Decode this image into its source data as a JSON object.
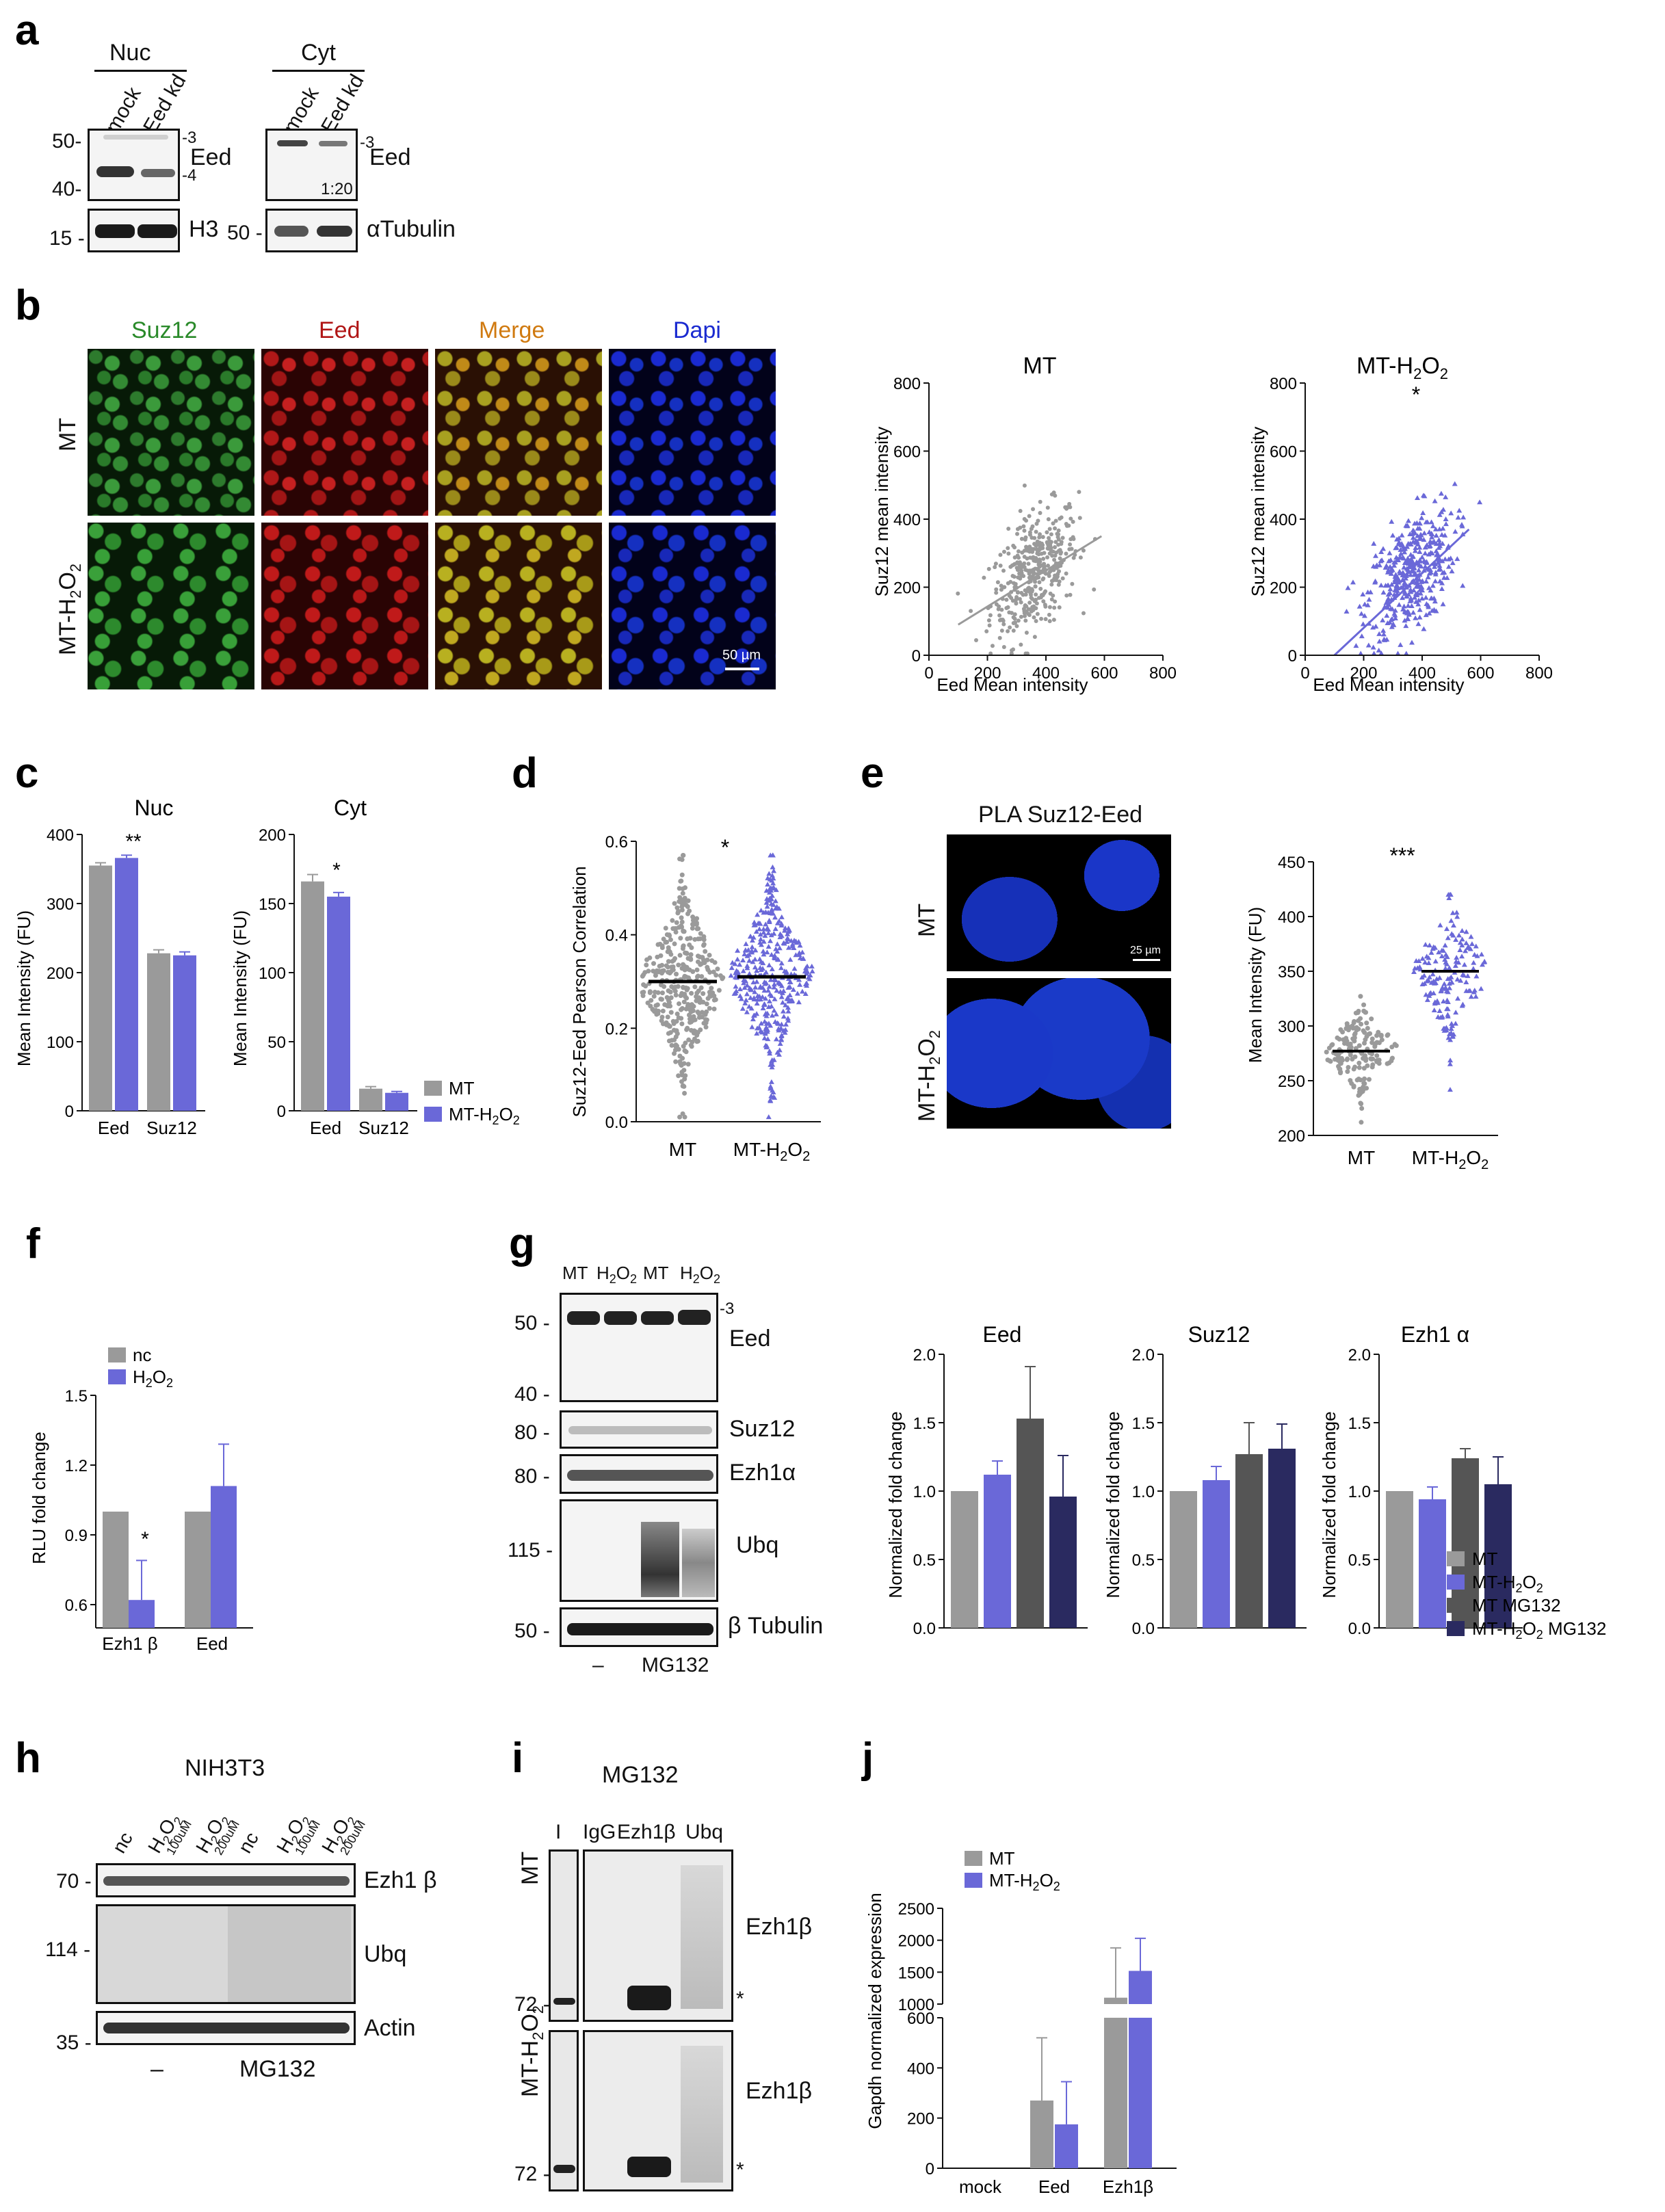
{
  "panel_labels": {
    "a": "a",
    "b": "b",
    "c": "c",
    "d": "d",
    "e": "e",
    "f": "f",
    "g": "g",
    "h": "h",
    "i": "i",
    "j": "j"
  },
  "a": {
    "nuc": "Nuc",
    "cyt": "Cyt",
    "lane_mock": "mock",
    "lane_eed_kd": "Eed kd",
    "eed": "Eed",
    "h3": "H3",
    "tubulin": "αTubulin",
    "mw_50": "50-",
    "mw_40": "40-",
    "mw_15": "15 -",
    "mw_50b": "50 -",
    "iso3": "-3",
    "iso4": "-4",
    "ratio": "1:20"
  },
  "b": {
    "cols": [
      "Suz12",
      "Eed",
      "Merge",
      "Dapi"
    ],
    "col_colors": [
      "#2a8a2a",
      "#b01515",
      "#d07a10",
      "#1a2ad0"
    ],
    "row_mt": "MT",
    "row_h2o2": "MT-H",
    "sub2": "2",
    "o": "O",
    "scale_bar": "50 µm",
    "scatter1_title": "MT",
    "scatter2_title_pre": "MT-H",
    "y_label": "Suz12 mean intensity",
    "x_label": "Eed Mean intensity",
    "star": "*",
    "y_ticks": [
      "800",
      "600",
      "400",
      "200",
      "0"
    ],
    "x_ticks": [
      "0",
      "200",
      "400",
      "600",
      "800"
    ]
  },
  "c": {
    "nuc": "Nuc",
    "cyt": "Cyt",
    "y_label": "Mean Intensity (FU)",
    "cats": [
      "Eed",
      "Suz12"
    ],
    "nuc_ticks": [
      "400",
      "300",
      "200",
      "100",
      "0"
    ],
    "cyt_ticks": [
      "200",
      "150",
      "100",
      "50",
      "0"
    ],
    "stars_nuc": "**",
    "stars_cyt": "*",
    "legend_mt": "MT",
    "legend_h2o2": "MT-H"
  },
  "d": {
    "y_label": "Suz12-Eed Pearson Correlation",
    "ticks": [
      "0.6",
      "0.4",
      "0.2",
      "0.0"
    ],
    "x_mt": "MT",
    "x_h2o2": "MT-H",
    "star": "*"
  },
  "e": {
    "title": "PLA Suz12-Eed",
    "row_mt": "MT",
    "row_h2o2": "MT-H",
    "scale": "25 µm",
    "y_label": "Mean Intensity (FU)",
    "ticks": [
      "450",
      "400",
      "350",
      "300",
      "250",
      "200"
    ],
    "x_mt": "MT",
    "x_h2o2": "MT-H",
    "stars": "***"
  },
  "f": {
    "legend_nc": "nc",
    "legend_h2o2": "H",
    "y_label": "RLU fold change",
    "ticks": [
      "1.5",
      "1.2",
      "0.9",
      "0.6"
    ],
    "x_ezh1b": "Ezh1 β",
    "x_eed": "Eed",
    "star": "*"
  },
  "g": {
    "lanes": [
      "MT",
      "H",
      "MT",
      "H"
    ],
    "mw": [
      "50 -",
      "40 -",
      "80 -",
      "80 -",
      "115 -",
      "50 -"
    ],
    "proteins": [
      "Eed",
      "Suz12",
      "Ezh1α",
      "Ubq",
      "β Tubulin"
    ],
    "iso": "-3",
    "bottom_minus": "–",
    "bottom_mg132": "MG132",
    "chart_titles": [
      "Eed",
      "Suz12",
      "Ezh1 α"
    ],
    "y_label": "Normalized fold change",
    "ticks": [
      "2.0",
      "1.5",
      "1.0",
      "0.5",
      "0.0"
    ],
    "legend": [
      "MT",
      "MT-H",
      "MT MG132",
      "MT-H"
    ],
    "legend_suffix": " MG132"
  },
  "h": {
    "title": "NIH3T3",
    "lanes": [
      "nc",
      "H",
      "H",
      "nc",
      "H",
      "H"
    ],
    "conc": [
      "100uM",
      "200uM",
      "100uM",
      "200uM"
    ],
    "mw": [
      "70 -",
      "114 -",
      "35 -"
    ],
    "proteins": [
      "Ezh1 β",
      "Ubq",
      "Actin"
    ],
    "minus": "–",
    "mg132": "MG132"
  },
  "i": {
    "title": "MG132",
    "lanes": [
      "I",
      "IgG",
      "Ezh1β",
      "Ubq"
    ],
    "row_mt": "MT",
    "row_h2o2": "MT-H",
    "protein": "Ezh1β",
    "mw": "72 -",
    "star": "*"
  },
  "j": {
    "legend_mt": "MT",
    "legend_h2o2": "MT-H",
    "y_label": "Gapdh normalized expression",
    "ticks_top": [
      "2500",
      "2000",
      "1500",
      "1000"
    ],
    "ticks_bot": [
      "600",
      "400",
      "200",
      "0"
    ],
    "cats": [
      "mock",
      "Eed",
      "Ezh1β"
    ]
  },
  "chart_data": [
    {
      "panel": "b",
      "type": "scatter",
      "title": "MT",
      "xlabel": "Eed Mean intensity",
      "ylabel": "Suz12 mean intensity",
      "xlim": [
        0,
        800
      ],
      "ylim": [
        0,
        800
      ],
      "fit": {
        "x": [
          100,
          590
        ],
        "y": [
          90,
          350
        ]
      }
    },
    {
      "panel": "b",
      "type": "scatter",
      "title": "MT-H2O2",
      "xlabel": "Eed Mean intensity",
      "ylabel": "Suz12 mean intensity",
      "xlim": [
        0,
        800
      ],
      "ylim": [
        0,
        800
      ],
      "fit": {
        "x": [
          100,
          560
        ],
        "y": [
          0,
          370
        ]
      }
    },
    {
      "panel": "c",
      "type": "bar",
      "title": "Nuc",
      "ylabel": "Mean Intensity (FU)",
      "ylim": [
        0,
        400
      ],
      "categories": [
        "Eed",
        "Suz12"
      ],
      "series": [
        {
          "name": "MT",
          "values": [
            355,
            228
          ],
          "err": [
            4,
            5
          ],
          "color": "#9a9a9a"
        },
        {
          "name": "MT-H2O2",
          "values": [
            366,
            225
          ],
          "err": [
            4,
            5
          ],
          "color": "#6a68d8"
        }
      ]
    },
    {
      "panel": "c",
      "type": "bar",
      "title": "Cyt",
      "ylabel": "Mean Intensity (FU)",
      "ylim": [
        0,
        200
      ],
      "categories": [
        "Eed",
        "Suz12"
      ],
      "series": [
        {
          "name": "MT",
          "values": [
            166,
            16
          ],
          "err": [
            5,
            1.5
          ],
          "color": "#9a9a9a"
        },
        {
          "name": "MT-H2O2",
          "values": [
            155,
            13
          ],
          "err": [
            3,
            1
          ],
          "color": "#6a68d8"
        }
      ]
    },
    {
      "panel": "d",
      "type": "scatter",
      "ylabel": "Suz12-Eed Pearson Correlation",
      "ylim": [
        0,
        0.6
      ],
      "categories": [
        "MT",
        "MT-H2O2"
      ],
      "means": [
        0.3,
        0.31
      ]
    },
    {
      "panel": "e",
      "type": "scatter",
      "ylabel": "Mean Intensity (FU)",
      "ylim": [
        200,
        450
      ],
      "categories": [
        "MT",
        "MT-H2O2"
      ],
      "means": [
        277,
        350
      ]
    },
    {
      "panel": "f",
      "type": "bar",
      "ylabel": "RLU fold change",
      "ylim": [
        0.5,
        1.5
      ],
      "categories": [
        "Ezh1 β",
        "Eed"
      ],
      "series": [
        {
          "name": "nc",
          "values": [
            1.0,
            1.0
          ],
          "err": [
            0,
            0
          ],
          "color": "#9a9a9a"
        },
        {
          "name": "H2O2",
          "values": [
            0.62,
            1.11
          ],
          "err": [
            0.17,
            0.18
          ],
          "color": "#6a68d8"
        }
      ]
    },
    {
      "panel": "g",
      "type": "bar",
      "title": "Eed",
      "ylabel": "Normalized fold change",
      "ylim": [
        0,
        2
      ],
      "values": [
        1.0,
        1.12,
        1.53,
        0.96
      ],
      "err": [
        0,
        0.1,
        0.38,
        0.3
      ]
    },
    {
      "panel": "g",
      "type": "bar",
      "title": "Suz12",
      "ylabel": "Normalized fold change",
      "ylim": [
        0,
        2
      ],
      "values": [
        1.0,
        1.08,
        1.27,
        1.31
      ],
      "err": [
        0,
        0.1,
        0.23,
        0.18
      ]
    },
    {
      "panel": "g",
      "type": "bar",
      "title": "Ezh1 α",
      "ylabel": "Normalized fold change",
      "ylim": [
        0,
        2
      ],
      "values": [
        1.0,
        0.94,
        1.24,
        1.05
      ],
      "err": [
        0,
        0.09,
        0.07,
        0.2
      ]
    },
    {
      "panel": "j",
      "type": "bar",
      "ylabel": "Gapdh normalized expression",
      "categories": [
        "mock",
        "Eed",
        "Ezh1β"
      ],
      "series": [
        {
          "name": "MT",
          "values": [
            0,
            270,
            1100
          ],
          "err": [
            0,
            250,
            780
          ],
          "color": "#9a9a9a"
        },
        {
          "name": "MT-H2O2",
          "values": [
            0,
            175,
            1520
          ],
          "err": [
            0,
            170,
            510
          ],
          "color": "#6a68d8"
        }
      ]
    }
  ]
}
